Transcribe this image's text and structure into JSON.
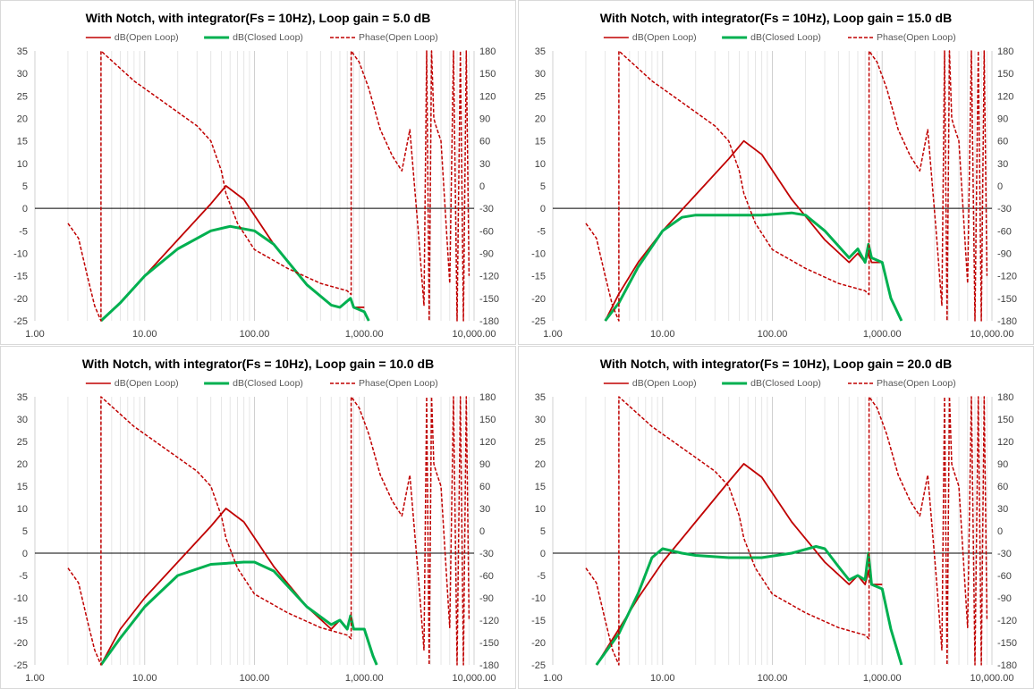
{
  "chart_data": [
    {
      "type": "line",
      "title": "With Notch, with integrator(Fs = 10Hz), Loop gain = 5.0 dB",
      "x_scale": "log",
      "xlim": [
        1,
        10000
      ],
      "x_ticks": [
        "1.00",
        "10.00",
        "100.00",
        "1,000.00",
        "10,000.00"
      ],
      "ylim": [
        -25,
        35
      ],
      "y_ticks": [
        "35",
        "30",
        "25",
        "20",
        "15",
        "10",
        "5",
        "0",
        "-5",
        "-10",
        "-15",
        "-20",
        "-25"
      ],
      "y2lim": [
        -180,
        180
      ],
      "y2_ticks": [
        "180",
        "150",
        "120",
        "90",
        "60",
        "30",
        "0",
        "-30",
        "-60",
        "-90",
        "-120",
        "-150",
        "-180"
      ],
      "legend": [
        "dB(Open Loop)",
        "dB(Closed Loop)",
        "Phase(Open Loop)"
      ],
      "legend_position": "top",
      "colors": {
        "open": "#c00000",
        "closed": "#00b050",
        "phase": "#c00000"
      },
      "series": [
        {
          "name": "dB(Open Loop)",
          "axis": "left",
          "x": [
            4,
            6,
            10,
            20,
            40,
            55,
            80,
            150,
            300,
            500,
            600,
            750,
            800,
            1000
          ],
          "y": [
            -25,
            -21,
            -15,
            -7,
            1,
            5,
            2,
            -8,
            -17,
            -21.5,
            -22,
            -20,
            -22,
            -22
          ]
        },
        {
          "name": "dB(Closed Loop)",
          "axis": "left",
          "x": [
            4,
            6,
            10,
            20,
            40,
            60,
            100,
            150,
            300,
            500,
            600,
            750,
            800,
            1000,
            1100
          ],
          "y": [
            -25,
            -21,
            -15,
            -9,
            -5,
            -4,
            -5,
            -8,
            -17,
            -21.5,
            -22,
            -20,
            -22,
            -23,
            -25
          ]
        },
        {
          "name": "Phase(Open Loop)",
          "axis": "right",
          "x": [
            2,
            2.5,
            3,
            3.5,
            4,
            4,
            8,
            30,
            40,
            50,
            55,
            70,
            100,
            200,
            400,
            700,
            760,
            760,
            900,
            1100,
            1400,
            1800,
            2200,
            2600,
            3100,
            3500,
            3700,
            3900,
            4100,
            4300,
            4500,
            5000,
            6000,
            6500,
            7000,
            7500,
            8000,
            8500,
            9000
          ],
          "y": [
            -50,
            -70,
            -120,
            -160,
            -180,
            180,
            140,
            80,
            60,
            20,
            -10,
            -50,
            -85,
            -110,
            -130,
            -140,
            -145,
            180,
            165,
            130,
            75,
            40,
            20,
            75,
            -60,
            -160,
            180,
            -180,
            180,
            90,
            80,
            60,
            -130,
            180,
            -180,
            180,
            -180,
            180,
            -120
          ]
        }
      ]
    },
    {
      "type": "line",
      "title": "With Notch, with integrator(Fs = 10Hz), Loop gain = 15.0 dB",
      "x_scale": "log",
      "xlim": [
        1,
        10000
      ],
      "x_ticks": [
        "1.00",
        "10.00",
        "100.00",
        "1,000.00",
        "10,000.00"
      ],
      "ylim": [
        -25,
        35
      ],
      "y_ticks": [
        "35",
        "30",
        "25",
        "20",
        "15",
        "10",
        "5",
        "0",
        "-5",
        "-10",
        "-15",
        "-20",
        "-25"
      ],
      "y2lim": [
        -180,
        180
      ],
      "y2_ticks": [
        "180",
        "150",
        "120",
        "90",
        "60",
        "30",
        "0",
        "-30",
        "-60",
        "-90",
        "-120",
        "-150",
        "-180"
      ],
      "legend": [
        "dB(Open Loop)",
        "dB(Closed Loop)",
        "Phase(Open Loop)"
      ],
      "legend_position": "top",
      "colors": {
        "open": "#c00000",
        "closed": "#00b050",
        "phase": "#c00000"
      },
      "series": [
        {
          "name": "dB(Open Loop)",
          "axis": "left",
          "x": [
            3,
            4,
            6,
            10,
            20,
            40,
            55,
            80,
            150,
            300,
            500,
            600,
            700,
            750,
            800,
            1000
          ],
          "y": [
            -25,
            -19,
            -12,
            -5,
            3,
            11,
            15,
            12,
            2,
            -7,
            -12,
            -10,
            -12,
            -10,
            -12,
            -12
          ]
        },
        {
          "name": "dB(Closed Loop)",
          "axis": "left",
          "x": [
            3,
            4,
            6,
            10,
            15,
            20,
            40,
            80,
            150,
            200,
            300,
            500,
            600,
            700,
            750,
            800,
            1000,
            1200,
            1500
          ],
          "y": [
            -25,
            -21,
            -13,
            -5,
            -2,
            -1.5,
            -1.5,
            -1.5,
            -1,
            -1.5,
            -5,
            -11,
            -9,
            -12,
            -8,
            -11,
            -12,
            -20,
            -25
          ]
        },
        {
          "name": "Phase(Open Loop)",
          "axis": "right",
          "x": [
            2,
            2.5,
            3,
            3.5,
            4,
            4,
            8,
            30,
            40,
            50,
            55,
            70,
            100,
            200,
            400,
            700,
            760,
            760,
            900,
            1100,
            1400,
            1800,
            2200,
            2600,
            3100,
            3500,
            3700,
            3900,
            4100,
            4300,
            4500,
            5000,
            6000,
            6500,
            7000,
            7500,
            8000,
            8500,
            9000
          ],
          "y": [
            -50,
            -70,
            -120,
            -160,
            -180,
            180,
            140,
            80,
            60,
            20,
            -10,
            -50,
            -85,
            -110,
            -130,
            -140,
            -145,
            180,
            165,
            130,
            75,
            40,
            20,
            75,
            -60,
            -160,
            180,
            -180,
            180,
            90,
            80,
            60,
            -130,
            180,
            -180,
            180,
            -180,
            180,
            -120
          ]
        }
      ]
    },
    {
      "type": "line",
      "title": "With Notch, with integrator(Fs = 10Hz), Loop gain = 10.0 dB",
      "x_scale": "log",
      "xlim": [
        1,
        10000
      ],
      "x_ticks": [
        "1.00",
        "10.00",
        "100.00",
        "1,000.00",
        "10,000.00"
      ],
      "ylim": [
        -25,
        35
      ],
      "y_ticks": [
        "35",
        "30",
        "25",
        "20",
        "15",
        "10",
        "5",
        "0",
        "-5",
        "-10",
        "-15",
        "-20",
        "-25"
      ],
      "y2lim": [
        -180,
        180
      ],
      "y2_ticks": [
        "180",
        "150",
        "120",
        "90",
        "60",
        "30",
        "0",
        "-30",
        "-60",
        "-90",
        "-120",
        "-150",
        "-180"
      ],
      "legend": [
        "dB(Open Loop)",
        "dB(Closed Loop)",
        "Phase(Open Loop)"
      ],
      "legend_position": "top",
      "colors": {
        "open": "#c00000",
        "closed": "#00b050",
        "phase": "#c00000"
      },
      "series": [
        {
          "name": "dB(Open Loop)",
          "axis": "left",
          "x": [
            4,
            6,
            10,
            20,
            40,
            55,
            80,
            150,
            300,
            500,
            600,
            700,
            750,
            800,
            1000
          ],
          "y": [
            -25,
            -17,
            -10,
            -2,
            6,
            10,
            7,
            -3,
            -12,
            -17,
            -15,
            -17,
            -14,
            -17,
            -17
          ]
        },
        {
          "name": "dB(Closed Loop)",
          "axis": "left",
          "x": [
            4,
            6,
            10,
            20,
            40,
            80,
            100,
            150,
            300,
            500,
            600,
            700,
            750,
            800,
            1000,
            1200,
            1300
          ],
          "y": [
            -25,
            -19,
            -12,
            -5,
            -2.5,
            -2,
            -2,
            -4,
            -12,
            -16,
            -15,
            -17,
            -14,
            -17,
            -17,
            -23,
            -25
          ]
        },
        {
          "name": "Phase(Open Loop)",
          "axis": "right",
          "x": [
            2,
            2.5,
            3,
            3.5,
            4,
            4,
            8,
            30,
            40,
            50,
            55,
            70,
            100,
            200,
            400,
            700,
            760,
            760,
            900,
            1100,
            1400,
            1800,
            2200,
            2600,
            3100,
            3500,
            3700,
            3900,
            4100,
            4300,
            4500,
            5000,
            6000,
            6500,
            7000,
            7500,
            8000,
            8500,
            9000
          ],
          "y": [
            -50,
            -70,
            -120,
            -160,
            -180,
            180,
            140,
            80,
            60,
            20,
            -10,
            -50,
            -85,
            -110,
            -130,
            -140,
            -145,
            180,
            165,
            130,
            75,
            40,
            20,
            75,
            -60,
            -160,
            180,
            -180,
            180,
            90,
            80,
            60,
            -130,
            180,
            -180,
            180,
            -180,
            180,
            -120
          ]
        }
      ]
    },
    {
      "type": "line",
      "title": "With Notch, with integrator(Fs = 10Hz), Loop gain = 20.0 dB",
      "x_scale": "log",
      "xlim": [
        1,
        10000
      ],
      "x_ticks": [
        "1.00",
        "10.00",
        "100.00",
        "1,000.00",
        "10,000.00"
      ],
      "ylim": [
        -25,
        35
      ],
      "y_ticks": [
        "35",
        "30",
        "25",
        "20",
        "15",
        "10",
        "5",
        "0",
        "-5",
        "-10",
        "-15",
        "-20",
        "-25"
      ],
      "y2lim": [
        -180,
        180
      ],
      "y2_ticks": [
        "180",
        "150",
        "120",
        "90",
        "60",
        "30",
        "0",
        "-30",
        "-60",
        "-90",
        "-120",
        "-150",
        "-180"
      ],
      "legend": [
        "dB(Open Loop)",
        "dB(Closed Loop)",
        "Phase(Open Loop)"
      ],
      "legend_position": "top",
      "colors": {
        "open": "#c00000",
        "closed": "#00b050",
        "phase": "#c00000"
      },
      "series": [
        {
          "name": "dB(Open Loop)",
          "axis": "left",
          "x": [
            2.5,
            4,
            6,
            10,
            20,
            40,
            55,
            80,
            150,
            300,
            500,
            600,
            700,
            750,
            800,
            1000
          ],
          "y": [
            -25,
            -17,
            -10,
            -2,
            7,
            16,
            20,
            17,
            7,
            -2,
            -7,
            -5,
            -7,
            -4,
            -7,
            -7
          ]
        },
        {
          "name": "dB(Closed Loop)",
          "axis": "left",
          "x": [
            2.5,
            4,
            6,
            8,
            10,
            15,
            20,
            40,
            80,
            150,
            250,
            300,
            400,
            500,
            600,
            700,
            750,
            800,
            1000,
            1200,
            1500
          ],
          "y": [
            -25,
            -18,
            -9,
            -1,
            1,
            0,
            -0.5,
            -1,
            -1,
            0,
            1.5,
            1,
            -3,
            -6,
            -5,
            -6,
            0,
            -7,
            -8,
            -17,
            -25
          ]
        },
        {
          "name": "Phase(Open Loop)",
          "axis": "right",
          "x": [
            2,
            2.5,
            3,
            3.5,
            4,
            4,
            8,
            30,
            40,
            50,
            55,
            70,
            100,
            200,
            400,
            700,
            760,
            760,
            900,
            1100,
            1400,
            1800,
            2200,
            2600,
            3100,
            3500,
            3700,
            3900,
            4100,
            4300,
            4500,
            5000,
            6000,
            6500,
            7000,
            7500,
            8000,
            8500,
            9000
          ],
          "y": [
            -50,
            -70,
            -120,
            -160,
            -180,
            180,
            140,
            80,
            60,
            20,
            -10,
            -50,
            -85,
            -110,
            -130,
            -140,
            -145,
            180,
            165,
            130,
            75,
            40,
            20,
            75,
            -60,
            -160,
            180,
            -180,
            180,
            90,
            80,
            60,
            -130,
            180,
            -180,
            180,
            -180,
            180,
            -120
          ]
        }
      ]
    }
  ]
}
